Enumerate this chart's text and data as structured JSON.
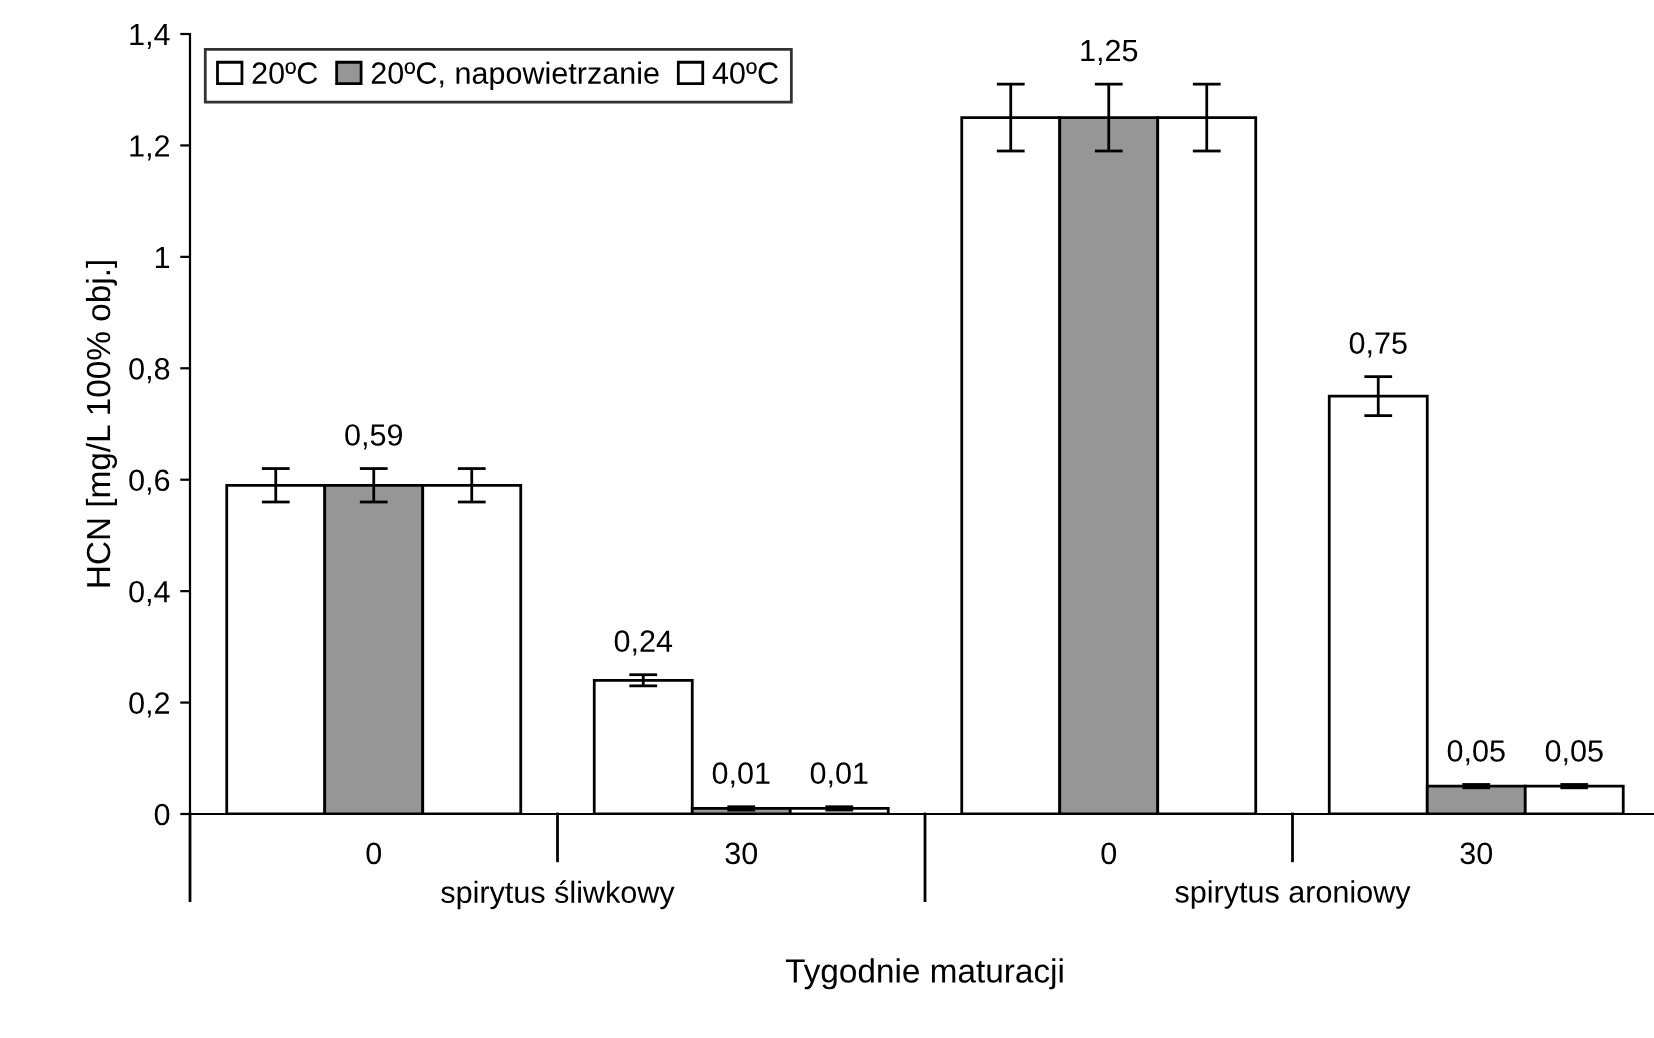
{
  "chart_data": {
    "type": "bar",
    "xlabel": "Tygodnie maturacji",
    "ylabel": "HCN [mg/L 100% obj.]",
    "categories": [
      "0",
      "30",
      "0",
      "30"
    ],
    "series": [
      {
        "name": "20ºC",
        "color": "#ffffff",
        "values": [
          0.59,
          0.24,
          1.25,
          0.75
        ],
        "errors": [
          0.03,
          0.01,
          0.06,
          0.035
        ],
        "value_labels": [
          null,
          "0,24",
          null,
          "0,75"
        ]
      },
      {
        "name": "20ºC, napowietrzanie",
        "color": "#969696",
        "values": [
          0.59,
          0.01,
          1.25,
          0.05
        ],
        "errors": [
          0.03,
          0.003,
          0.06,
          0.003
        ],
        "value_labels": [
          "0,59",
          "0,01",
          "1,25",
          "0,05"
        ]
      },
      {
        "name": "40ºC",
        "color": "#ffffff",
        "values": [
          0.59,
          0.01,
          1.25,
          0.05
        ],
        "errors": [
          0.03,
          0.003,
          0.06,
          0.003
        ],
        "value_labels": [
          null,
          "0,01",
          null,
          "0,05"
        ]
      }
    ],
    "annotations": [
      "spirytus śliwkowy",
      "spirytus aroniowy"
    ],
    "ylim": [
      0,
      1.4
    ],
    "yticks": [
      0,
      {
        "value": 0.2,
        "label": "0,2"
      },
      {
        "value": 0.4,
        "label": "0,4"
      },
      {
        "value": 0.6,
        "label": "0,6"
      },
      {
        "value": 0.8,
        "label": "0,8"
      },
      1,
      {
        "value": 1.2,
        "label": "1,2"
      },
      {
        "value": 1.4,
        "label": "1,4"
      }
    ],
    "grid": false,
    "legend": "top left"
  }
}
